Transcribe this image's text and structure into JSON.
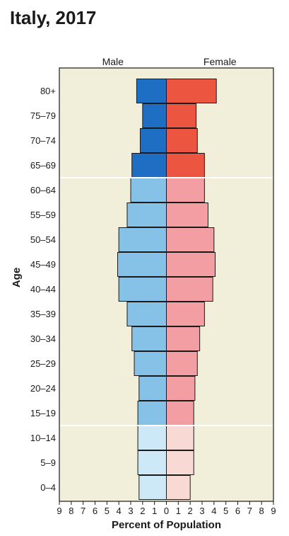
{
  "chart_data": {
    "type": "bar",
    "subtype": "population-pyramid",
    "title": "Italy, 2017",
    "xlabel": "Percent of Population",
    "ylabel": "Age",
    "xlim": [
      -9,
      9
    ],
    "x_ticks": [
      "9",
      "8",
      "7",
      "6",
      "5",
      "4",
      "3",
      "2",
      "1",
      "0",
      "1",
      "2",
      "3",
      "4",
      "5",
      "6",
      "7",
      "8",
      "9"
    ],
    "categories": [
      "0–4",
      "5–9",
      "10–14",
      "15–19",
      "20–24",
      "25–29",
      "30–34",
      "35–39",
      "40–44",
      "45–49",
      "50–54",
      "55–59",
      "60–64",
      "65–69",
      "70–74",
      "75–79",
      "80+"
    ],
    "series": [
      {
        "name": "Male",
        "values": [
          2.3,
          2.4,
          2.4,
          2.4,
          2.3,
          2.7,
          2.9,
          3.3,
          4.0,
          4.1,
          4.0,
          3.3,
          3.0,
          2.9,
          2.2,
          2.0,
          2.5
        ]
      },
      {
        "name": "Female",
        "values": [
          2.0,
          2.3,
          2.3,
          2.3,
          2.4,
          2.6,
          2.8,
          3.2,
          3.9,
          4.1,
          4.0,
          3.5,
          3.2,
          3.2,
          2.6,
          2.5,
          4.2
        ]
      }
    ],
    "plot_background": "#f1eed9",
    "colors": {
      "male_old": "#1e6fc4",
      "male_mid": "#86c2e8",
      "male_young": "#cde9f7",
      "female_old": "#ec5540",
      "female_mid": "#f29ea3",
      "female_young": "#f9d9d4"
    },
    "bands": {
      "young_indices": [
        0,
        1,
        2
      ],
      "old_indices": [
        13,
        14,
        15,
        16
      ]
    },
    "grid": false
  }
}
